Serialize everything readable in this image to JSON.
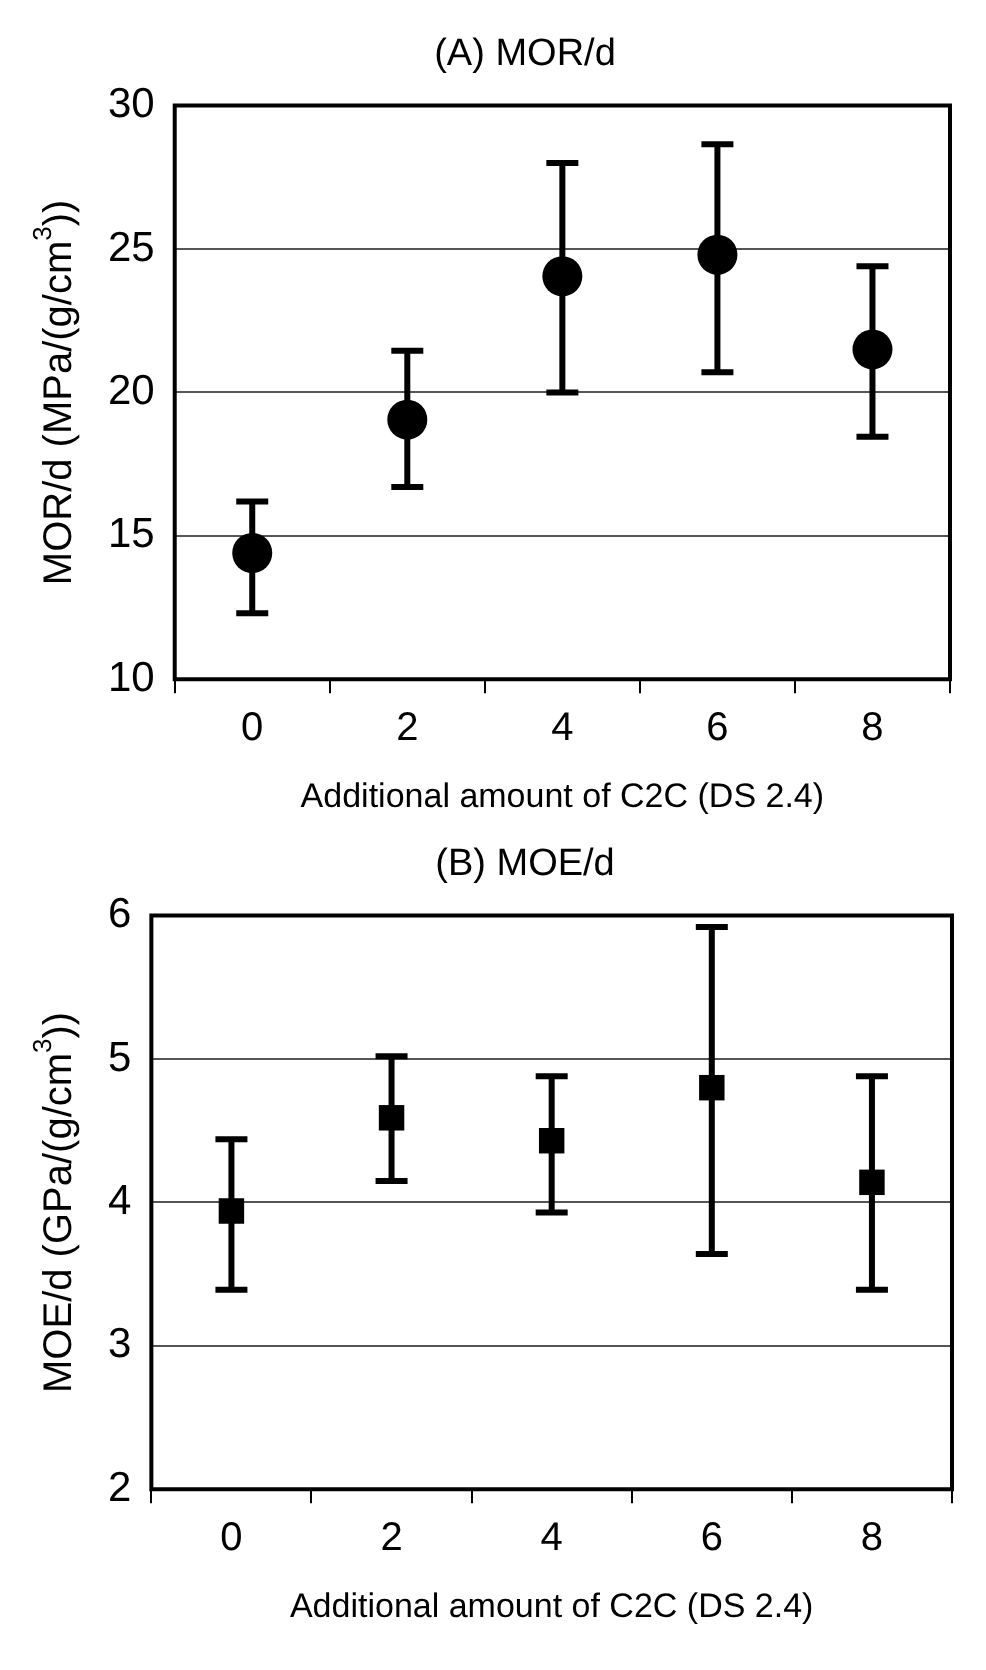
{
  "chart_data": [
    {
      "type": "scatter",
      "title": "(A) MOR/d",
      "xlabel": "Additional amount of C2C (DS 2.4)",
      "ylabel": "MOR/d (MPa/(g/cm$^{3}$))",
      "categories": [
        "0",
        "2",
        "4",
        "6",
        "8"
      ],
      "values": [
        14.4,
        19.05,
        24.05,
        24.8,
        21.5
      ],
      "errors": [
        [
          12.3,
          16.2
        ],
        [
          16.7,
          21.45
        ],
        [
          20.0,
          28.0
        ],
        [
          20.7,
          28.65
        ],
        [
          18.45,
          24.4
        ]
      ],
      "color": "#000000",
      "marker": "circle",
      "ylim": [
        10,
        30
      ],
      "yticks": [
        10,
        15,
        20,
        25,
        30
      ],
      "grid": "y",
      "legend": false
    },
    {
      "type": "scatter",
      "title": "(B) MOE/d",
      "xlabel": "Additional amount of C2C (DS 2.4)",
      "ylabel": "MOE/d (GPa/(g/cm$^{3}$))",
      "categories": [
        "0",
        "2",
        "4",
        "6",
        "8"
      ],
      "values": [
        3.94,
        4.59,
        4.43,
        4.8,
        4.14
      ],
      "errors": [
        [
          3.39,
          4.44
        ],
        [
          4.15,
          5.02
        ],
        [
          3.93,
          4.88
        ],
        [
          3.64,
          5.92
        ],
        [
          3.39,
          4.88
        ]
      ],
      "color": "#000000",
      "marker": "square",
      "ylim": [
        2,
        6
      ],
      "yticks": [
        2,
        3,
        4,
        5,
        6
      ],
      "grid": "y",
      "legend": false
    }
  ]
}
